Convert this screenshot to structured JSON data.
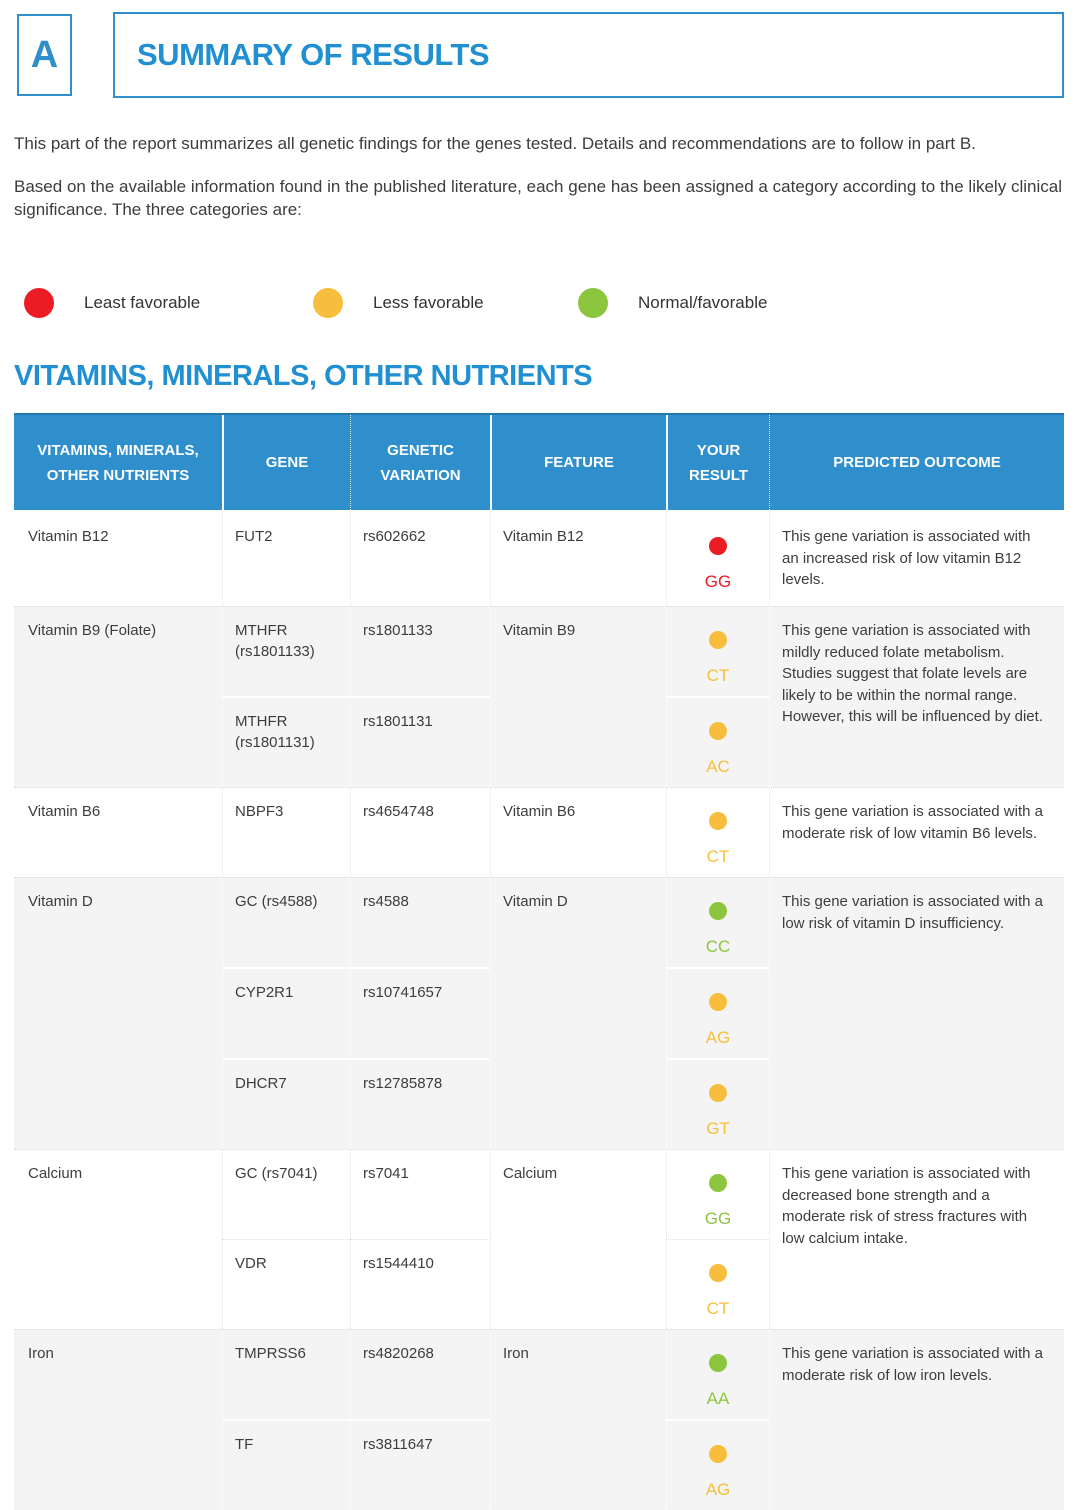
{
  "header": {
    "section_letter": "A",
    "title": "SUMMARY OF RESULTS"
  },
  "intro": {
    "paragraph1": "This part of the report summarizes all genetic findings for the genes tested. Details and recommendations are to follow in part B.",
    "paragraph2": "Based on the available information found in the published literature, each gene has been assigned a category according to the likely clinical significance. The three categories are:"
  },
  "legend": [
    {
      "label": "Least favorable",
      "status": "red"
    },
    {
      "label": "Less favorable",
      "status": "yellow"
    },
    {
      "label": "Normal/favorable",
      "status": "green"
    }
  ],
  "section_title": "VITAMINS, MINERALS, OTHER NUTRIENTS",
  "colors": {
    "accent_blue": "#2e8fcc",
    "red": "#ec1c24",
    "yellow": "#f6be3c",
    "green": "#8cc63f"
  },
  "table": {
    "headers": [
      "VITAMINS, MINERALS, OTHER NUTRIENTS",
      "GENE",
      "GENETIC VARIATION",
      "FEATURE",
      "YOUR RESULT",
      "PREDICTED OUTCOME"
    ],
    "rows": [
      {
        "nutrient": "Vitamin B12",
        "feature": "Vitamin B12",
        "outcome": "This gene variation is associated with an increased risk of low vitamin B12 levels.",
        "variants": [
          {
            "gene": "FUT2",
            "variation": "rs602662",
            "result": "GG",
            "status": "red"
          }
        ]
      },
      {
        "nutrient": "Vitamin B9 (Folate)",
        "feature": "Vitamin B9",
        "outcome": "This gene variation is associated with mildly reduced folate metabolism. Studies suggest that folate levels are likely to be within the normal range. However, this will be influenced by diet.",
        "variants": [
          {
            "gene": "MTHFR (rs1801133)",
            "variation": "rs1801133",
            "result": "CT",
            "status": "yellow"
          },
          {
            "gene": "MTHFR (rs1801131)",
            "variation": "rs1801131",
            "result": "AC",
            "status": "yellow"
          }
        ]
      },
      {
        "nutrient": "Vitamin B6",
        "feature": "Vitamin B6",
        "outcome": "This gene variation is associated with a moderate risk of low vitamin B6 levels.",
        "variants": [
          {
            "gene": "NBPF3",
            "variation": "rs4654748",
            "result": "CT",
            "status": "yellow"
          }
        ]
      },
      {
        "nutrient": "Vitamin D",
        "feature": "Vitamin D",
        "outcome": "This gene variation is associated with a low risk of vitamin D insufficiency.",
        "variants": [
          {
            "gene": "GC (rs4588)",
            "variation": "rs4588",
            "result": "CC",
            "status": "green"
          },
          {
            "gene": "CYP2R1",
            "variation": "rs10741657",
            "result": "AG",
            "status": "yellow"
          },
          {
            "gene": "DHCR7",
            "variation": "rs12785878",
            "result": "GT",
            "status": "yellow"
          }
        ]
      },
      {
        "nutrient": "Calcium",
        "feature": "Calcium",
        "outcome": "This gene variation is associated with decreased bone strength and a moderate risk of stress fractures with low calcium intake.",
        "variants": [
          {
            "gene": "GC (rs7041)",
            "variation": "rs7041",
            "result": "GG",
            "status": "green"
          },
          {
            "gene": "VDR",
            "variation": "rs1544410",
            "result": "CT",
            "status": "yellow"
          }
        ]
      },
      {
        "nutrient": "Iron",
        "feature": "Iron",
        "outcome": "This gene variation is associated with a moderate risk of low iron levels.",
        "variants": [
          {
            "gene": "TMPRSS6",
            "variation": "rs4820268",
            "result": "AA",
            "status": "green"
          },
          {
            "gene": "TF",
            "variation": "rs3811647",
            "result": "AG",
            "status": "yellow"
          }
        ]
      }
    ]
  }
}
